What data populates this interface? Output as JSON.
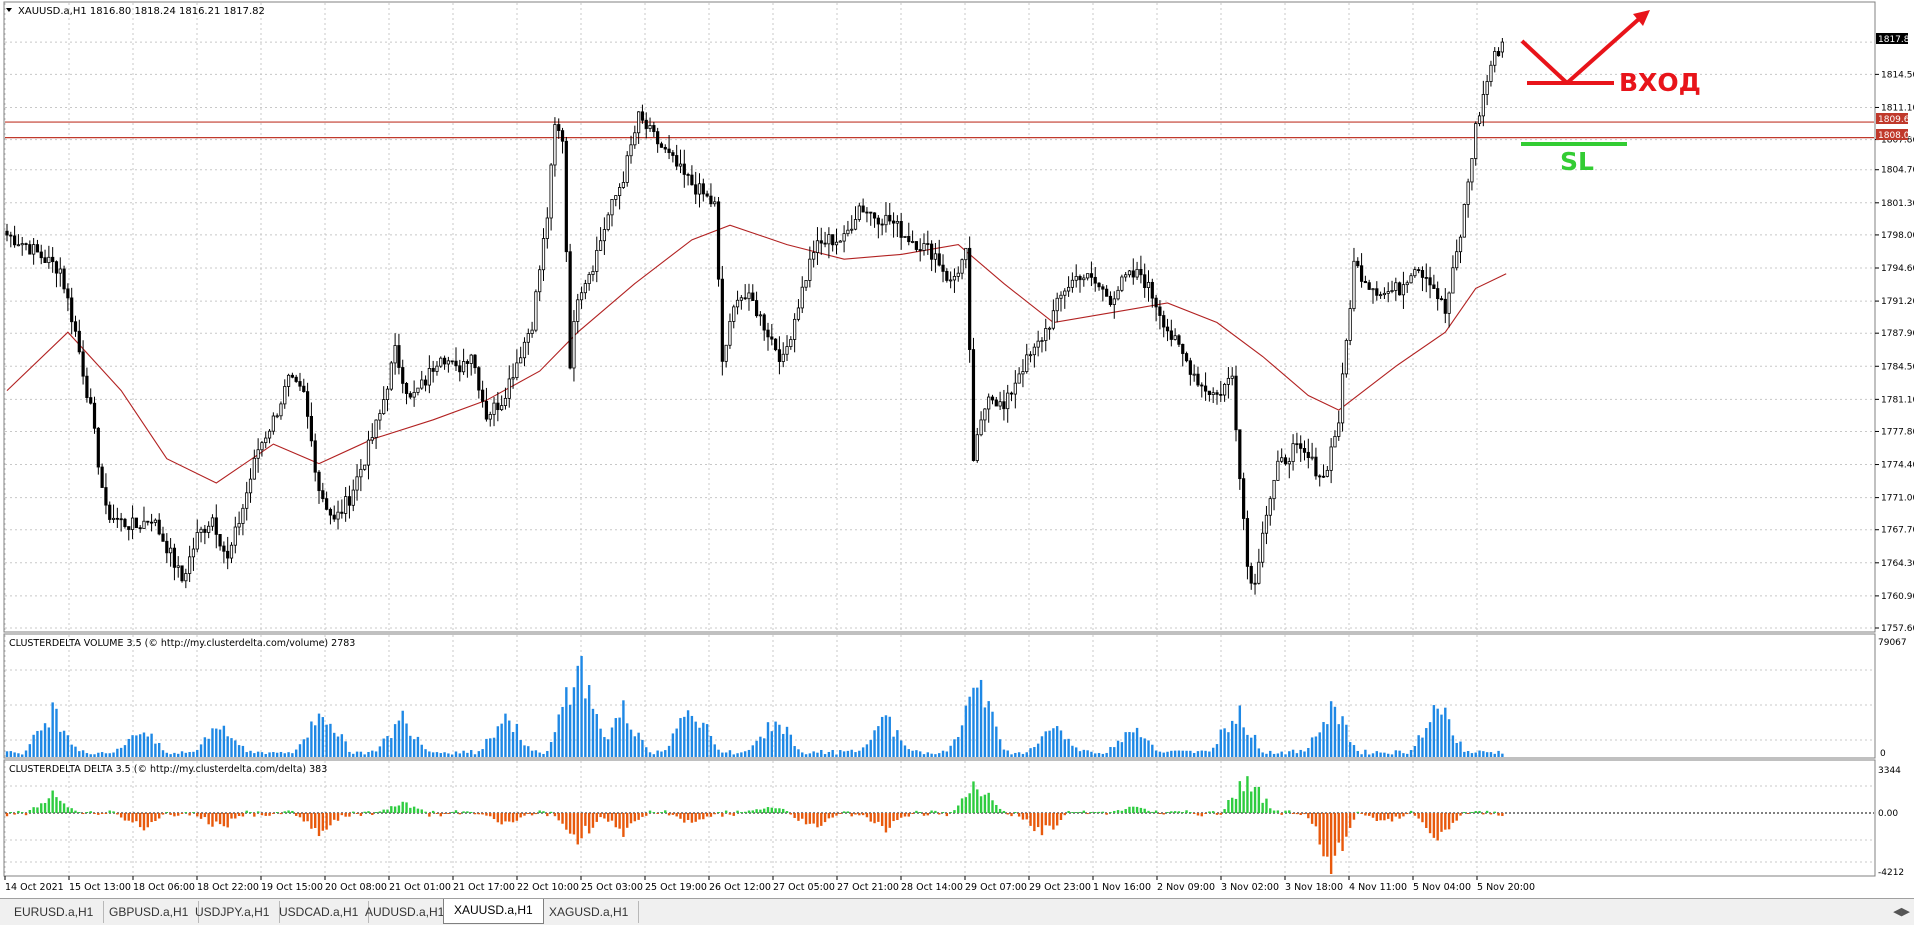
{
  "window": {
    "symbol_header": "XAUUSD.a,H1  1816.80 1818.24 1816.21 1817.82"
  },
  "colors": {
    "candle": "#000000",
    "ma": "#b22222",
    "level_lines": "#c0392b",
    "volume": "#1e88e5",
    "delta_pos": "#2ecc40",
    "delta_neg": "#e8590c",
    "annotation_red": "#e8141a",
    "annotation_green": "#33cc33",
    "grid": "#c8c8c8"
  },
  "price_panel": {
    "current_price_label": "1817.82",
    "level_labels": [
      "1809.60",
      "1808.00"
    ],
    "annotations": {
      "entry_text": "ВХОД",
      "sl_text": "SL"
    }
  },
  "volume_panel": {
    "title": "CLUSTERDELTA VOLUME 3.5 (© http://my.clusterdelta.com/volume) 2783",
    "ticks": [
      "79067",
      "0"
    ]
  },
  "delta_panel": {
    "title": "CLUSTERDELTA DELTA 3.5 (© http://my.clusterdelta.com/delta) 383",
    "ticks": [
      "3344",
      "0.00",
      "-4212"
    ]
  },
  "tabs": [
    {
      "label": "EURUSD.a,H1",
      "active": false
    },
    {
      "label": "GBPUSD.a,H1",
      "active": false
    },
    {
      "label": "USDJPY.a,H1",
      "active": false
    },
    {
      "label": "USDCAD.a,H1",
      "active": false
    },
    {
      "label": "AUDUSD.a,H1",
      "active": false
    },
    {
      "label": "XAUUSD.a,H1",
      "active": true
    },
    {
      "label": "XAGUSD.a,H1",
      "active": false
    }
  ],
  "chart_data": {
    "type": "candlestick",
    "symbol": "XAUUSD.a",
    "timeframe": "H1",
    "last_bar": {
      "open": 1816.8,
      "high": 1818.24,
      "low": 1816.21,
      "close": 1817.82
    },
    "ylim": [
      1757.6,
      1820.5
    ],
    "y_ticks": [
      1817.82,
      1814.5,
      1811.1,
      1807.8,
      1804.7,
      1801.3,
      1798.0,
      1794.6,
      1791.2,
      1787.9,
      1784.5,
      1781.1,
      1777.8,
      1774.4,
      1771.0,
      1767.7,
      1764.3,
      1760.9,
      1757.6
    ],
    "x_tick_labels": [
      "14 Oct 2021",
      "15 Oct 13:00",
      "18 Oct 06:00",
      "18 Oct 22:00",
      "19 Oct 15:00",
      "20 Oct 08:00",
      "21 Oct 01:00",
      "21 Oct 17:00",
      "22 Oct 10:00",
      "25 Oct 03:00",
      "25 Oct 19:00",
      "26 Oct 12:00",
      "27 Oct 05:00",
      "27 Oct 21:00",
      "28 Oct 14:00",
      "29 Oct 07:00",
      "29 Oct 23:00",
      "1 Nov 16:00",
      "2 Nov 09:00",
      "3 Nov 02:00",
      "3 Nov 18:00",
      "4 Nov 11:00",
      "5 Nov 04:00",
      "5 Nov 20:00"
    ],
    "horizontal_levels": [
      1809.6,
      1808.0
    ],
    "close_path": [
      [
        0,
        1798.0
      ],
      [
        5,
        1797.0
      ],
      [
        10,
        1795.5
      ],
      [
        14,
        1794.5
      ],
      [
        18,
        1788.0
      ],
      [
        22,
        1780.0
      ],
      [
        26,
        1769.5
      ],
      [
        30,
        1768.5
      ],
      [
        34,
        1768.0
      ],
      [
        38,
        1769.0
      ],
      [
        42,
        1766.0
      ],
      [
        46,
        1762.5
      ],
      [
        50,
        1767.0
      ],
      [
        54,
        1769.0
      ],
      [
        58,
        1764.5
      ],
      [
        62,
        1770.0
      ],
      [
        66,
        1776.0
      ],
      [
        70,
        1779.0
      ],
      [
        74,
        1783.0
      ],
      [
        78,
        1781.5
      ],
      [
        82,
        1772.0
      ],
      [
        86,
        1768.5
      ],
      [
        90,
        1771.0
      ],
      [
        94,
        1775.0
      ],
      [
        98,
        1779.5
      ],
      [
        102,
        1786.0
      ],
      [
        106,
        1781.0
      ],
      [
        110,
        1783.0
      ],
      [
        114,
        1786.0
      ],
      [
        118,
        1784.0
      ],
      [
        122,
        1786.0
      ],
      [
        126,
        1779.5
      ],
      [
        130,
        1781.0
      ],
      [
        134,
        1785.0
      ],
      [
        138,
        1789.0
      ],
      [
        142,
        1800.0
      ],
      [
        144,
        1809.0
      ],
      [
        146,
        1808.0
      ],
      [
        148,
        1785.0
      ],
      [
        150,
        1792.0
      ],
      [
        154,
        1795.0
      ],
      [
        158,
        1800.0
      ],
      [
        162,
        1804.0
      ],
      [
        166,
        1810.0
      ],
      [
        170,
        1808.0
      ],
      [
        174,
        1806.0
      ],
      [
        178,
        1804.0
      ],
      [
        182,
        1802.5
      ],
      [
        186,
        1801.0
      ],
      [
        188,
        1785.0
      ],
      [
        192,
        1792.0
      ],
      [
        196,
        1791.0
      ],
      [
        200,
        1788.0
      ],
      [
        204,
        1785.0
      ],
      [
        208,
        1791.0
      ],
      [
        212,
        1796.5
      ],
      [
        216,
        1797.5
      ],
      [
        220,
        1797.5
      ],
      [
        224,
        1801.0
      ],
      [
        228,
        1800.0
      ],
      [
        232,
        1799.5
      ],
      [
        236,
        1798.0
      ],
      [
        240,
        1797.0
      ],
      [
        244,
        1796.0
      ],
      [
        248,
        1793.0
      ],
      [
        252,
        1796.0
      ],
      [
        254,
        1775.0
      ],
      [
        258,
        1782.0
      ],
      [
        262,
        1780.0
      ],
      [
        266,
        1784.0
      ],
      [
        270,
        1786.0
      ],
      [
        274,
        1789.0
      ],
      [
        278,
        1792.5
      ],
      [
        282,
        1794.0
      ],
      [
        286,
        1793.0
      ],
      [
        290,
        1791.5
      ],
      [
        294,
        1793.5
      ],
      [
        298,
        1794.0
      ],
      [
        302,
        1791.0
      ],
      [
        306,
        1787.5
      ],
      [
        310,
        1785.0
      ],
      [
        314,
        1782.5
      ],
      [
        318,
        1781.5
      ],
      [
        322,
        1783.5
      ],
      [
        326,
        1764.0
      ],
      [
        328,
        1762.0
      ],
      [
        330,
        1768.0
      ],
      [
        334,
        1774.0
      ],
      [
        338,
        1776.0
      ],
      [
        342,
        1775.0
      ],
      [
        346,
        1773.0
      ],
      [
        350,
        1779.0
      ],
      [
        354,
        1795.0
      ],
      [
        358,
        1793.0
      ],
      [
        362,
        1792.0
      ],
      [
        366,
        1792.5
      ],
      [
        370,
        1795.0
      ],
      [
        374,
        1793.5
      ],
      [
        378,
        1790.0
      ],
      [
        382,
        1798.0
      ],
      [
        386,
        1809.0
      ],
      [
        390,
        1815.5
      ],
      [
        393,
        1817.82
      ]
    ],
    "moving_average": [
      [
        0,
        1782.0
      ],
      [
        16,
        1788.0
      ],
      [
        30,
        1782.0
      ],
      [
        42,
        1775.0
      ],
      [
        55,
        1772.5
      ],
      [
        70,
        1776.5
      ],
      [
        82,
        1774.5
      ],
      [
        96,
        1777.0
      ],
      [
        112,
        1779.0
      ],
      [
        126,
        1781.0
      ],
      [
        140,
        1784.0
      ],
      [
        150,
        1788.0
      ],
      [
        165,
        1793.0
      ],
      [
        180,
        1797.5
      ],
      [
        190,
        1799.0
      ],
      [
        205,
        1797.0
      ],
      [
        220,
        1795.5
      ],
      [
        235,
        1796.0
      ],
      [
        250,
        1797.0
      ],
      [
        262,
        1793.0
      ],
      [
        275,
        1789.0
      ],
      [
        290,
        1790.0
      ],
      [
        305,
        1791.0
      ],
      [
        318,
        1789.0
      ],
      [
        330,
        1785.5
      ],
      [
        342,
        1781.5
      ],
      [
        350,
        1780.0
      ],
      [
        365,
        1784.5
      ],
      [
        378,
        1788.0
      ],
      [
        386,
        1792.5
      ],
      [
        394,
        1794.0
      ]
    ],
    "volume_bursts": [
      [
        12,
        0.45
      ],
      [
        35,
        0.28
      ],
      [
        56,
        0.34
      ],
      [
        83,
        0.47
      ],
      [
        104,
        0.38
      ],
      [
        131,
        0.4
      ],
      [
        150,
        0.95
      ],
      [
        162,
        0.44
      ],
      [
        180,
        0.52
      ],
      [
        202,
        0.37
      ],
      [
        231,
        0.37
      ],
      [
        255,
        0.7
      ],
      [
        275,
        0.31
      ],
      [
        296,
        0.32
      ],
      [
        323,
        0.45
      ],
      [
        348,
        0.49
      ],
      [
        376,
        0.51
      ]
    ],
    "delta_bursts": [
      [
        12,
        0.45,
        0.2
      ],
      [
        35,
        0.2,
        -0.3
      ],
      [
        56,
        0.25,
        -0.3
      ],
      [
        82,
        0.15,
        -0.4
      ],
      [
        104,
        0.25,
        -0.2
      ],
      [
        131,
        0.1,
        -0.2
      ],
      [
        150,
        0.55,
        -0.55
      ],
      [
        162,
        0.1,
        -0.4
      ],
      [
        180,
        0.15,
        -0.2
      ],
      [
        200,
        0.2,
        -0.1
      ],
      [
        212,
        0.1,
        -0.3
      ],
      [
        231,
        0.1,
        -0.3
      ],
      [
        255,
        0.75,
        0.0
      ],
      [
        272,
        0.1,
        -0.45
      ],
      [
        296,
        0.15,
        -0.1
      ],
      [
        326,
        1.0,
        0.0
      ],
      [
        348,
        0.05,
        -1.0
      ],
      [
        362,
        0.1,
        -0.2
      ],
      [
        376,
        0.2,
        -0.45
      ]
    ]
  }
}
